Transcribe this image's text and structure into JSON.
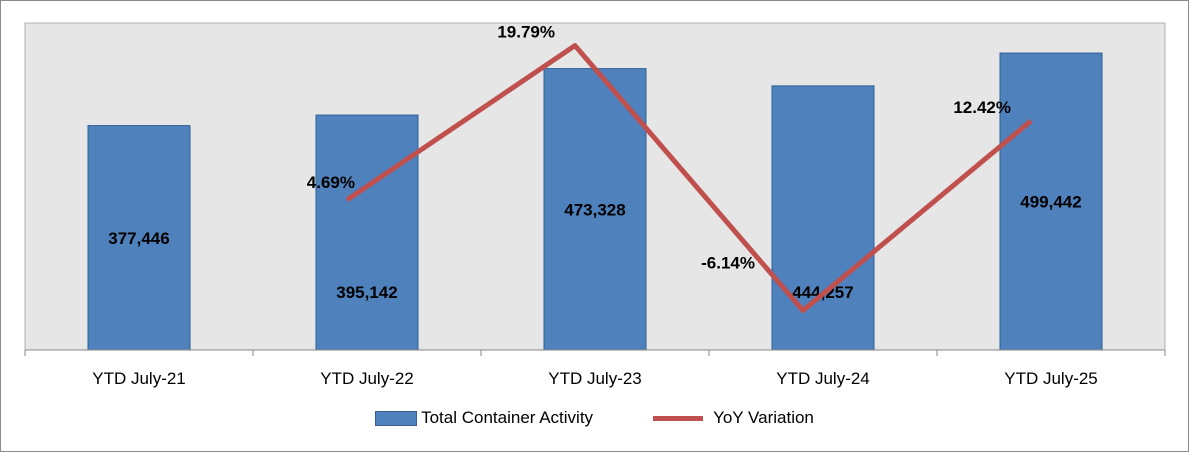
{
  "chart_data": {
    "type": "bar",
    "categories": [
      "YTD July-21",
      "YTD July-22",
      "YTD July-23",
      "YTD July-24",
      "YTD July-25"
    ],
    "series": [
      {
        "name": "Total Container Activity",
        "type": "bar",
        "color": "#4f81bd",
        "values": [
          377446,
          395142,
          473328,
          444257,
          499442
        ],
        "labels": [
          "377,446",
          "395,142",
          "473,328",
          "444,257",
          "499,442"
        ]
      },
      {
        "name": "YoY Variation",
        "type": "line",
        "color": "#c0504d",
        "values": [
          null,
          4.69,
          19.79,
          -6.14,
          12.42
        ],
        "labels": [
          "",
          "4.69%",
          "19.79%",
          "-6.14%",
          "12.42%"
        ]
      }
    ],
    "ylim": [
      0,
      550000
    ],
    "y2lim": [
      -10,
      22
    ],
    "grid": false,
    "legend": "bottom",
    "plot_background": "#e6e6e6"
  }
}
